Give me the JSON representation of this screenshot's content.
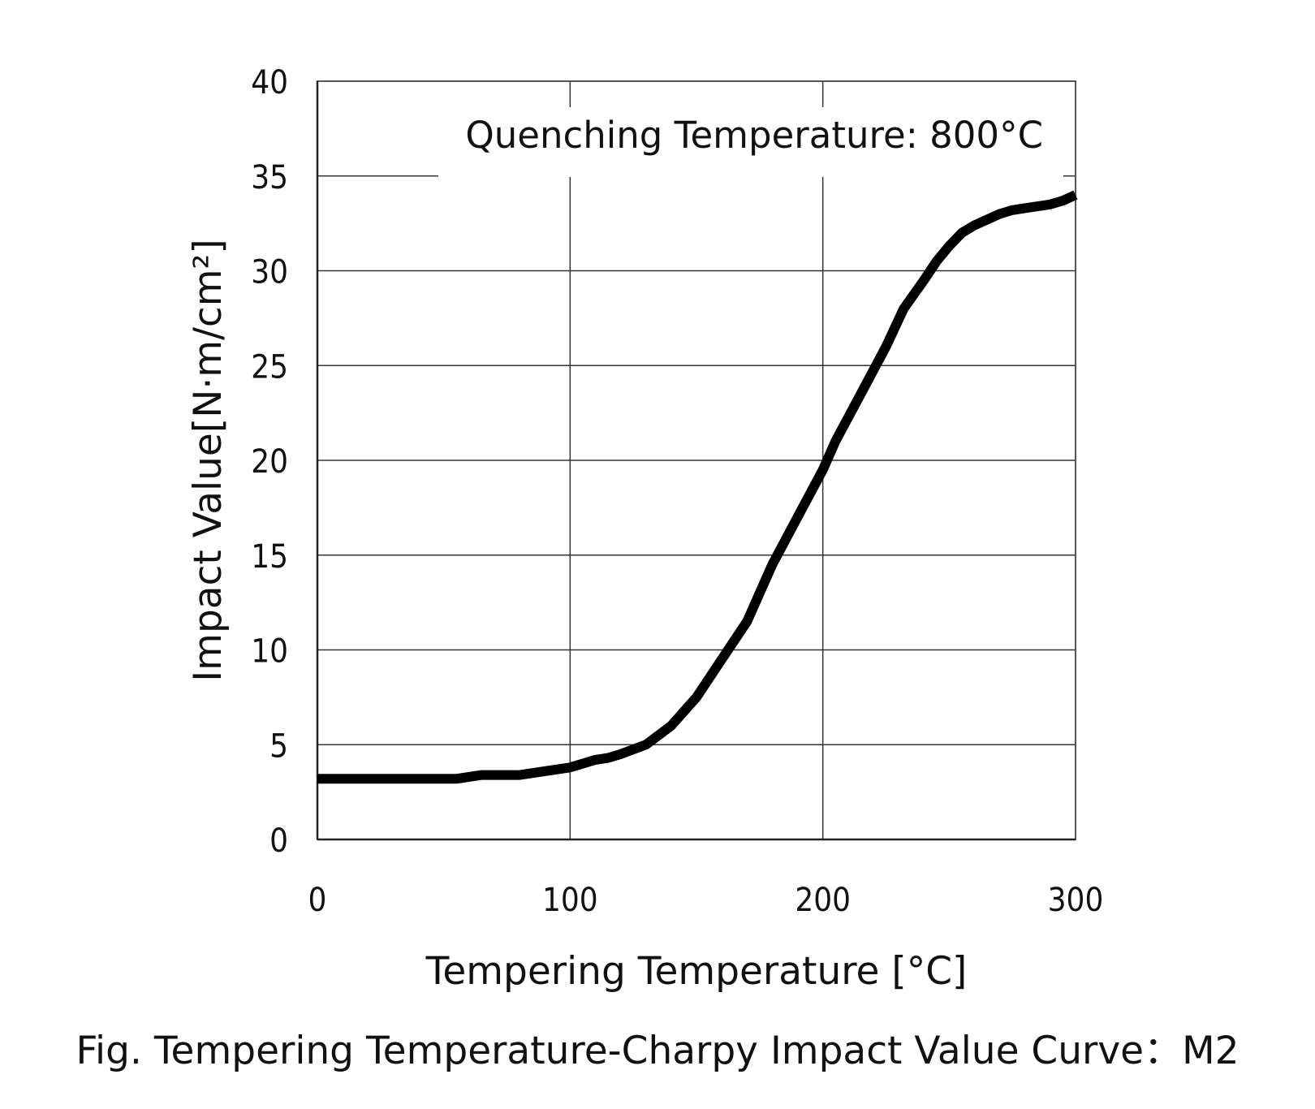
{
  "chart_data": {
    "type": "line",
    "title": "",
    "xlabel": "Tempering Temperature [°C]",
    "ylabel": "Impact Value[N·m/cm²]",
    "annotation": "Quenching Temperature: 800°C",
    "caption": "Fig. Tempering Temperature-Charpy Impact Value Curve：M2",
    "xlim": [
      0,
      300
    ],
    "ylim": [
      0,
      40
    ],
    "xticks": [
      0,
      100,
      200,
      300
    ],
    "yticks": [
      0,
      5,
      10,
      15,
      20,
      25,
      30,
      35,
      40
    ],
    "grid": true,
    "legend": "none",
    "series": [
      {
        "color": "#000000",
        "x": [
          0,
          10,
          20,
          30,
          40,
          50,
          55,
          65,
          80,
          90,
          100,
          110,
          115,
          120,
          130,
          140,
          150,
          160,
          170,
          180,
          190,
          200,
          205,
          215,
          225,
          232,
          240,
          245,
          250,
          255,
          260,
          265,
          270,
          275,
          280,
          290,
          295,
          300
        ],
        "y": [
          3.2,
          3.2,
          3.2,
          3.2,
          3.2,
          3.2,
          3.2,
          3.4,
          3.4,
          3.6,
          3.8,
          4.2,
          4.3,
          4.5,
          5.0,
          6.0,
          7.5,
          9.5,
          11.5,
          14.5,
          17.0,
          19.5,
          21.0,
          23.5,
          26.0,
          28.0,
          29.5,
          30.5,
          31.3,
          32.0,
          32.4,
          32.7,
          33.0,
          33.2,
          33.3,
          33.5,
          33.7,
          34.0
        ]
      }
    ]
  }
}
